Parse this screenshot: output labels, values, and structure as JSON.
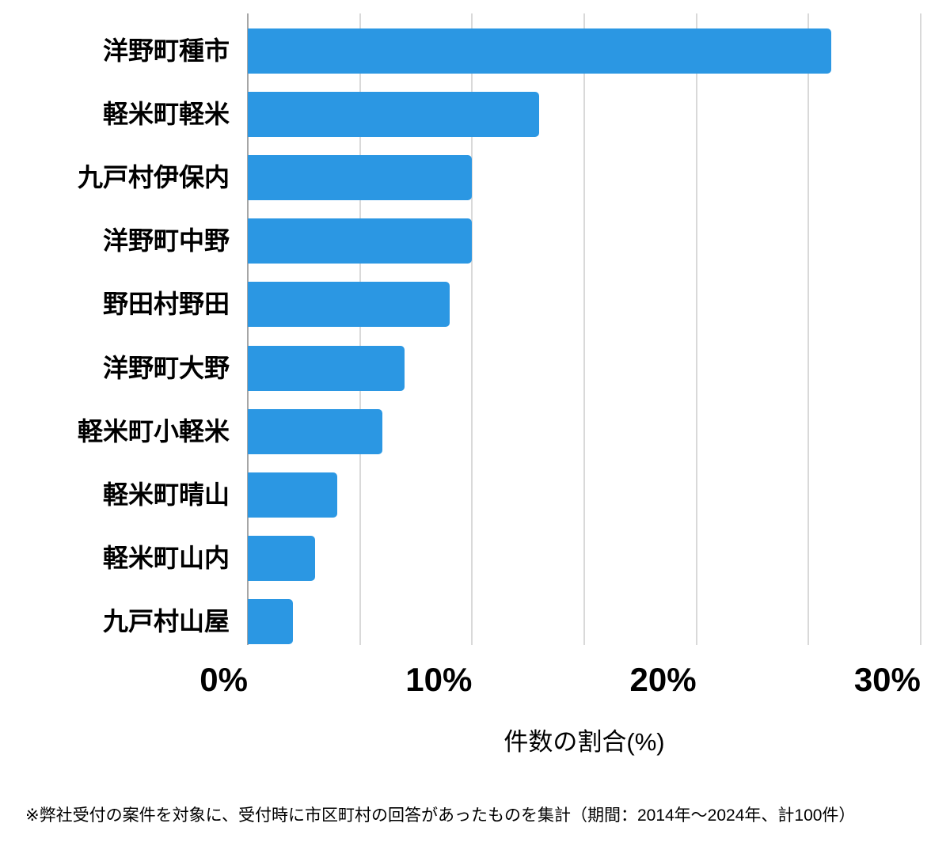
{
  "chart_data": {
    "type": "bar",
    "orientation": "horizontal",
    "title": "",
    "categories": [
      "洋野町種市",
      "軽米町軽米",
      "九戸村伊保内",
      "洋野町中野",
      "野田村野田",
      "洋野町大野",
      "軽米町小軽米",
      "軽米町晴山",
      "軽米町山内",
      "九戸村山屋"
    ],
    "values": [
      26,
      13,
      10,
      10,
      9,
      7,
      6,
      4,
      3,
      2
    ],
    "unit": "%",
    "xlabel": "件数の割合(%)",
    "ylabel": "",
    "xlim": [
      0,
      30
    ],
    "x_major_ticks": [
      0,
      10,
      20,
      30
    ],
    "x_tick_labels": [
      "0%",
      "10%",
      "20%",
      "30%"
    ],
    "x_grid_step": 5,
    "grid": true,
    "legend": false,
    "bar_color": "#2b97e3",
    "grid_color": "#d9d9d9",
    "axis_line_color": "#a6a6a6",
    "text_color": "#000000",
    "background": "#ffffff"
  },
  "footnote": "※弊社受付の案件を対象に、受付時に市区町村の回答があったものを集計（期間：2014年～2024年、計100件）"
}
